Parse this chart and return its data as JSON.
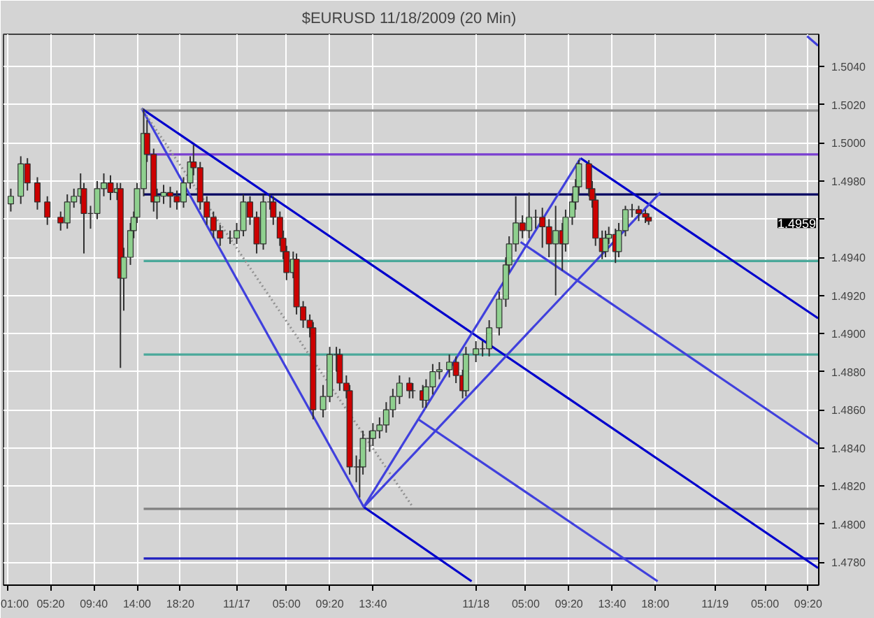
{
  "chart_data": {
    "type": "candlestick",
    "title": "$EURUSD  11/18/2009 (20 Min)",
    "xlim": [
      "2009-11-16T00:36",
      "2009-11-19T10:24"
    ],
    "ylim": [
      1.4768,
      1.5057
    ],
    "xticks": [
      {
        "value": "2009-11-16T01:00",
        "label": "01:00"
      },
      {
        "value": "2009-11-16T05:20",
        "label": "05:20"
      },
      {
        "value": "2009-11-16T09:40",
        "label": "09:40"
      },
      {
        "value": "2009-11-16T14:00",
        "label": "14:00"
      },
      {
        "value": "2009-11-16T18:20",
        "label": "18:20"
      },
      {
        "value": "2009-11-17",
        "label": "11/17"
      },
      {
        "value": "2009-11-17T05:00",
        "label": "05:00"
      },
      {
        "value": "2009-11-17T09:20",
        "label": "09:20"
      },
      {
        "value": "2009-11-17T13:40",
        "label": "13:40"
      },
      {
        "value": "2009-11-18",
        "label": "11/18"
      },
      {
        "value": "2009-11-18T05:00",
        "label": "05:00"
      },
      {
        "value": "2009-11-18T09:20",
        "label": "09:20"
      },
      {
        "value": "2009-11-18T13:40",
        "label": "13:40"
      },
      {
        "value": "2009-11-18T18:00",
        "label": "18:00"
      },
      {
        "value": "2009-11-19",
        "label": "11/19"
      },
      {
        "value": "2009-11-19T05:00",
        "label": "05:00"
      },
      {
        "value": "2009-11-19T09:20",
        "label": "09:20"
      }
    ],
    "yticks": [
      {
        "value": 1.478,
        "label": "1.4780"
      },
      {
        "value": 1.48,
        "label": "1.4800"
      },
      {
        "value": 1.482,
        "label": "1.4820"
      },
      {
        "value": 1.484,
        "label": "1.4840"
      },
      {
        "value": 1.486,
        "label": "1.4860"
      },
      {
        "value": 1.488,
        "label": "1.4880"
      },
      {
        "value": 1.49,
        "label": "1.4900"
      },
      {
        "value": 1.492,
        "label": "1.4920"
      },
      {
        "value": 1.494,
        "label": "1.4940"
      },
      {
        "value": 1.496,
        "label": null
      },
      {
        "value": 1.498,
        "label": "1.4980"
      },
      {
        "value": 1.5,
        "label": "1.5000"
      },
      {
        "value": 1.502,
        "label": "1.5020"
      },
      {
        "value": 1.504,
        "label": "1.5040"
      }
    ],
    "grid": true,
    "annotations": [
      "1.4959"
    ],
    "series": [
      {
        "x": [
          "2009-11-16T01:20",
          "2009-11-16T02:20",
          "2009-11-16T03:00",
          "2009-11-16T04:00",
          "2009-11-16T05:00",
          "2009-11-16T06:20",
          "2009-11-16T07:00",
          "2009-11-16T07:40",
          "2009-11-16T08:20",
          "2009-11-16T08:40",
          "2009-11-16T09:20",
          "2009-11-16T10:00",
          "2009-11-16T10:40",
          "2009-11-16T11:20",
          "2009-11-16T12:00",
          "2009-11-16T12:20",
          "2009-11-16T12:40",
          "2009-11-16T13:20",
          "2009-11-16T13:40",
          "2009-11-16T14:00",
          "2009-11-16T14:40",
          "2009-11-16T15:00",
          "2009-11-16T15:40",
          "2009-11-16T16:00",
          "2009-11-16T16:40",
          "2009-11-16T17:20",
          "2009-11-16T18:00",
          "2009-11-16T18:40",
          "2009-11-16T19:20",
          "2009-11-16T19:40",
          "2009-11-16T20:20",
          "2009-11-16T21:00",
          "2009-11-16T21:40",
          "2009-11-16T22:20",
          "2009-11-16T23:20",
          "2009-11-17T00:00",
          "2009-11-17T00:40",
          "2009-11-17T01:20",
          "2009-11-17T02:00",
          "2009-11-17T02:40",
          "2009-11-17T03:20",
          "2009-11-17T03:40",
          "2009-11-17T04:20",
          "2009-11-17T04:40",
          "2009-11-17T05:00",
          "2009-11-17T05:40",
          "2009-11-17T06:00",
          "2009-11-17T06:40",
          "2009-11-17T07:20",
          "2009-11-17T07:40",
          "2009-11-17T08:40",
          "2009-11-17T09:20",
          "2009-11-17T10:00",
          "2009-11-17T10:20",
          "2009-11-17T11:00",
          "2009-11-17T11:20",
          "2009-11-17T12:00",
          "2009-11-17T12:20",
          "2009-11-17T12:40",
          "2009-11-17T13:20",
          "2009-11-17T13:40",
          "2009-11-17T14:20",
          "2009-11-17T15:00",
          "2009-11-17T15:40",
          "2009-11-17T16:20",
          "2009-11-17T17:20",
          "2009-11-17T17:40",
          "2009-11-17T18:40",
          "2009-11-17T19:00",
          "2009-11-17T19:40",
          "2009-11-17T20:20",
          "2009-11-17T21:20",
          "2009-11-17T22:00",
          "2009-11-17T22:40",
          "2009-11-17T23:00",
          "2009-11-18T00:00",
          "2009-11-18T00:40",
          "2009-11-18T01:20",
          "2009-11-18T02:20",
          "2009-11-18T03:00",
          "2009-11-18T03:20",
          "2009-11-18T04:00",
          "2009-11-18T04:40",
          "2009-11-18T05:20",
          "2009-11-18T06:00",
          "2009-11-18T06:40",
          "2009-11-18T07:20",
          "2009-11-18T08:00",
          "2009-11-18T08:40",
          "2009-11-18T09:00",
          "2009-11-18T09:40",
          "2009-11-18T10:00",
          "2009-11-18T10:20",
          "2009-11-18T11:20",
          "2009-11-18T11:40",
          "2009-11-18T12:00",
          "2009-11-18T12:40",
          "2009-11-18T13:00",
          "2009-11-18T13:20",
          "2009-11-18T14:00",
          "2009-11-18T14:20",
          "2009-11-18T15:00",
          "2009-11-18T15:40",
          "2009-11-18T16:20",
          "2009-11-18T17:00",
          "2009-11-18T17:20"
        ],
        "ohlc": [
          [
            1.4968,
            1.4976,
            1.4964,
            1.4972
          ],
          [
            1.4972,
            1.4993,
            1.4968,
            1.4989
          ],
          [
            1.4989,
            1.4992,
            1.4975,
            1.4979
          ],
          [
            1.4979,
            1.4982,
            1.4965,
            1.4969
          ],
          [
            1.4969,
            1.4972,
            1.4957,
            1.4961
          ],
          [
            1.4961,
            1.4964,
            1.4954,
            1.4958
          ],
          [
            1.4958,
            1.4973,
            1.4955,
            1.4969
          ],
          [
            1.4969,
            1.4976,
            1.4966,
            1.4972
          ],
          [
            1.4972,
            1.4984,
            1.4968,
            1.4976
          ],
          [
            1.4976,
            1.4979,
            1.4942,
            1.4963
          ],
          [
            1.4963,
            1.4967,
            1.4955,
            1.4963
          ],
          [
            1.4963,
            1.498,
            1.496,
            1.4976
          ],
          [
            1.4976,
            1.4984,
            1.4972,
            1.4979
          ],
          [
            1.4979,
            1.4983,
            1.497,
            1.4974
          ],
          [
            1.4974,
            1.4979,
            1.497,
            1.4976
          ],
          [
            1.4976,
            1.4979,
            1.4882,
            1.4929
          ],
          [
            1.4929,
            1.4945,
            1.4912,
            1.494
          ],
          [
            1.494,
            1.4958,
            1.4936,
            1.4954
          ],
          [
            1.4954,
            1.4964,
            1.495,
            1.4961
          ],
          [
            1.4961,
            1.4979,
            1.4958,
            1.4976
          ],
          [
            1.4976,
            1.5018,
            1.4972,
            1.5005
          ],
          [
            1.5005,
            1.5012,
            1.499,
            1.4994
          ],
          [
            1.4994,
            1.4997,
            1.4964,
            1.4969
          ],
          [
            1.4969,
            1.4976,
            1.496,
            1.4972
          ],
          [
            1.4972,
            1.4978,
            1.4968,
            1.4974
          ],
          [
            1.4974,
            1.4977,
            1.4966,
            1.4972
          ],
          [
            1.4972,
            1.4975,
            1.4965,
            1.4969
          ],
          [
            1.4969,
            1.4982,
            1.4966,
            1.4979
          ],
          [
            1.4979,
            1.4993,
            1.4976,
            1.499
          ],
          [
            1.499,
            1.4999,
            1.4983,
            1.4987
          ],
          [
            1.4987,
            1.499,
            1.4965,
            1.4969
          ],
          [
            1.4969,
            1.4972,
            1.4957,
            1.4961
          ],
          [
            1.4961,
            1.4964,
            1.495,
            1.4954
          ],
          [
            1.4954,
            1.4957,
            1.4946,
            1.495
          ],
          [
            1.495,
            1.4954,
            1.4947,
            1.495
          ],
          [
            1.495,
            1.4958,
            1.4947,
            1.4954
          ],
          [
            1.4954,
            1.4973,
            1.4951,
            1.4969
          ],
          [
            1.4969,
            1.4972,
            1.4957,
            1.4961
          ],
          [
            1.4961,
            1.4964,
            1.4942,
            1.4947
          ],
          [
            1.4947,
            1.4973,
            1.4944,
            1.4969
          ],
          [
            1.4969,
            1.4973,
            1.4965,
            1.4969
          ],
          [
            1.4969,
            1.4972,
            1.4957,
            1.4961
          ],
          [
            1.4961,
            1.4964,
            1.4946,
            1.495
          ],
          [
            1.495,
            1.4954,
            1.4939,
            1.4943
          ],
          [
            1.4943,
            1.4946,
            1.4928,
            1.4932
          ],
          [
            1.4932,
            1.4943,
            1.4929,
            1.4939
          ],
          [
            1.4939,
            1.4942,
            1.491,
            1.4914
          ],
          [
            1.4914,
            1.4917,
            1.4903,
            1.4907
          ],
          [
            1.4907,
            1.491,
            1.4898,
            1.4903
          ],
          [
            1.4903,
            1.4906,
            1.4855,
            1.486
          ],
          [
            1.486,
            1.4873,
            1.4856,
            1.4867
          ],
          [
            1.4867,
            1.4893,
            1.4864,
            1.4889
          ],
          [
            1.4889,
            1.4893,
            1.488,
            1.4889
          ],
          [
            1.4889,
            1.4892,
            1.487,
            1.4874
          ],
          [
            1.4874,
            1.4878,
            1.4866,
            1.487
          ],
          [
            1.487,
            1.4873,
            1.4826,
            1.483
          ],
          [
            1.483,
            1.4836,
            1.4822,
            1.483
          ],
          [
            1.483,
            1.4834,
            1.4814,
            1.483
          ],
          [
            1.483,
            1.4849,
            1.4826,
            1.4845
          ],
          [
            1.4845,
            1.4849,
            1.4838,
            1.4845
          ],
          [
            1.4845,
            1.4853,
            1.4841,
            1.4849
          ],
          [
            1.4849,
            1.4856,
            1.4845,
            1.4852
          ],
          [
            1.4852,
            1.4864,
            1.4848,
            1.486
          ],
          [
            1.486,
            1.4871,
            1.4856,
            1.4867
          ],
          [
            1.4867,
            1.4878,
            1.4863,
            1.4874
          ],
          [
            1.4874,
            1.4877,
            1.4866,
            1.487
          ],
          [
            1.487,
            1.4874,
            1.4866,
            1.487
          ],
          [
            1.487,
            1.4873,
            1.4861,
            1.4865
          ],
          [
            1.4865,
            1.4876,
            1.4861,
            1.4872
          ],
          [
            1.4872,
            1.4884,
            1.4868,
            1.488
          ],
          [
            1.488,
            1.4885,
            1.4876,
            1.4881
          ],
          [
            1.4881,
            1.4889,
            1.4877,
            1.4885
          ],
          [
            1.4885,
            1.4888,
            1.4874,
            1.4878
          ],
          [
            1.4878,
            1.4881,
            1.4866,
            1.487
          ],
          [
            1.487,
            1.4893,
            1.4867,
            1.4889
          ],
          [
            1.4889,
            1.4896,
            1.4885,
            1.4892
          ],
          [
            1.4892,
            1.4896,
            1.4888,
            1.4892
          ],
          [
            1.4892,
            1.4907,
            1.4888,
            1.4903
          ],
          [
            1.4903,
            1.4922,
            1.4899,
            1.4918
          ],
          [
            1.4918,
            1.494,
            1.4914,
            1.4936
          ],
          [
            1.4936,
            1.4951,
            1.4932,
            1.4947
          ],
          [
            1.4947,
            1.4972,
            1.4943,
            1.4958
          ],
          [
            1.4958,
            1.4962,
            1.495,
            1.4954
          ],
          [
            1.4954,
            1.4974,
            1.495,
            1.4961
          ],
          [
            1.4961,
            1.4965,
            1.4955,
            1.4961
          ],
          [
            1.4961,
            1.4966,
            1.4945,
            1.4956
          ],
          [
            1.4956,
            1.496,
            1.494,
            1.4947
          ],
          [
            1.4947,
            1.4967,
            1.492,
            1.4954
          ],
          [
            1.4954,
            1.4958,
            1.4933,
            1.4947
          ],
          [
            1.4947,
            1.4965,
            1.4943,
            1.4961
          ],
          [
            1.4961,
            1.4973,
            1.4957,
            1.4969
          ],
          [
            1.4969,
            1.4981,
            1.4965,
            1.4977
          ],
          [
            1.4977,
            1.4991,
            1.4973,
            1.4989
          ],
          [
            1.4989,
            1.4991,
            1.4972,
            1.4976
          ],
          [
            1.4976,
            1.498,
            1.4966,
            1.497
          ],
          [
            1.497,
            1.4973,
            1.4946,
            1.495
          ],
          [
            1.495,
            1.4954,
            1.4939,
            1.4943
          ],
          [
            1.4943,
            1.4954,
            1.494,
            1.495
          ],
          [
            1.495,
            1.4956,
            1.4947,
            1.4952
          ],
          [
            1.4952,
            1.4955,
            1.4937,
            1.4943
          ],
          [
            1.4943,
            1.4958,
            1.494,
            1.4954
          ],
          [
            1.4954,
            1.4967,
            1.4951,
            1.4965
          ],
          [
            1.4965,
            1.4968,
            1.4961,
            1.4965
          ],
          [
            1.4965,
            1.4967,
            1.4959,
            1.4963
          ],
          [
            1.4963,
            1.4965,
            1.4958,
            1.4961
          ],
          [
            1.4961,
            1.4963,
            1.4957,
            1.4959
          ]
        ]
      },
      {
        "type": "line",
        "color": "#909090",
        "x": [
          "2009-11-16T14:40",
          "2009-11-19T10:20"
        ],
        "values": [
          1.5017,
          1.5017
        ]
      },
      {
        "type": "line",
        "color": "#7a3fd0",
        "x": [
          "2009-11-16T14:40",
          "2009-11-19T10:20"
        ],
        "values": [
          1.4994,
          1.4994
        ]
      },
      {
        "type": "line",
        "color": "#000060",
        "x": [
          "2009-11-16T14:40",
          "2009-11-19T10:20"
        ],
        "values": [
          1.4973,
          1.4973
        ]
      },
      {
        "type": "line",
        "color": "#4aa89a",
        "x": [
          "2009-11-16T14:40",
          "2009-11-19T10:20"
        ],
        "values": [
          1.4938,
          1.4938
        ]
      },
      {
        "type": "line",
        "color": "#4aa89a",
        "x": [
          "2009-11-16T14:40",
          "2009-11-19T10:20"
        ],
        "values": [
          1.4889,
          1.4889
        ]
      },
      {
        "type": "line",
        "color": "#808080",
        "x": [
          "2009-11-16T14:40",
          "2009-11-19T10:20"
        ],
        "values": [
          1.4808,
          1.4808
        ]
      },
      {
        "type": "line",
        "color": "#2020c0",
        "x": [
          "2009-11-16T14:40",
          "2009-11-19T10:20"
        ],
        "values": [
          1.4782,
          1.4782
        ]
      },
      {
        "type": "line",
        "color": "#0000cc",
        "x": [
          "2009-11-16T14:28",
          "2009-11-19T10:20"
        ],
        "values": [
          1.5018,
          1.4777
        ]
      },
      {
        "type": "line",
        "color": "#0000cc",
        "x": [
          "2009-11-18T10:30",
          "2009-11-19T10:20"
        ],
        "values": [
          1.4992,
          1.4908
        ]
      },
      {
        "type": "line",
        "color": "#0000cc",
        "x": [
          "2009-11-17T12:45",
          "2009-11-17T23:34"
        ],
        "values": [
          1.4809,
          1.477
        ]
      },
      {
        "type": "line",
        "color": "#4040dd",
        "x": [
          "2009-11-16T14:28",
          "2009-11-17T12:45"
        ],
        "values": [
          1.5018,
          1.4809
        ]
      },
      {
        "type": "line",
        "color": "#909090",
        "line_style": "dotted",
        "x": [
          "2009-11-16T14:28",
          "2009-11-17T17:40"
        ],
        "values": [
          1.5018,
          1.4809
        ]
      },
      {
        "type": "line",
        "color": "#4040dd",
        "x": [
          "2009-11-17T12:45",
          "2009-11-18T10:30"
        ],
        "values": [
          1.4809,
          1.4992
        ]
      },
      {
        "type": "line",
        "color": "#4040dd",
        "x": [
          "2009-11-17T12:45",
          "2009-11-18T18:30"
        ],
        "values": [
          1.4809,
          1.4974
        ]
      },
      {
        "type": "line",
        "color": "#4040dd",
        "x": [
          "2009-11-17T18:13",
          "2009-11-18T18:14"
        ],
        "values": [
          1.4855,
          1.477
        ]
      },
      {
        "type": "line",
        "color": "#4040dd",
        "x": [
          "2009-11-18T04:29",
          "2009-11-19T10:20"
        ],
        "values": [
          1.4948,
          1.4842
        ]
      },
      {
        "type": "line",
        "color": "#4040dd",
        "x": [
          "2009-11-19T09:14",
          "2009-11-19T10:20"
        ],
        "values": [
          1.5056,
          1.5051
        ]
      }
    ]
  }
}
